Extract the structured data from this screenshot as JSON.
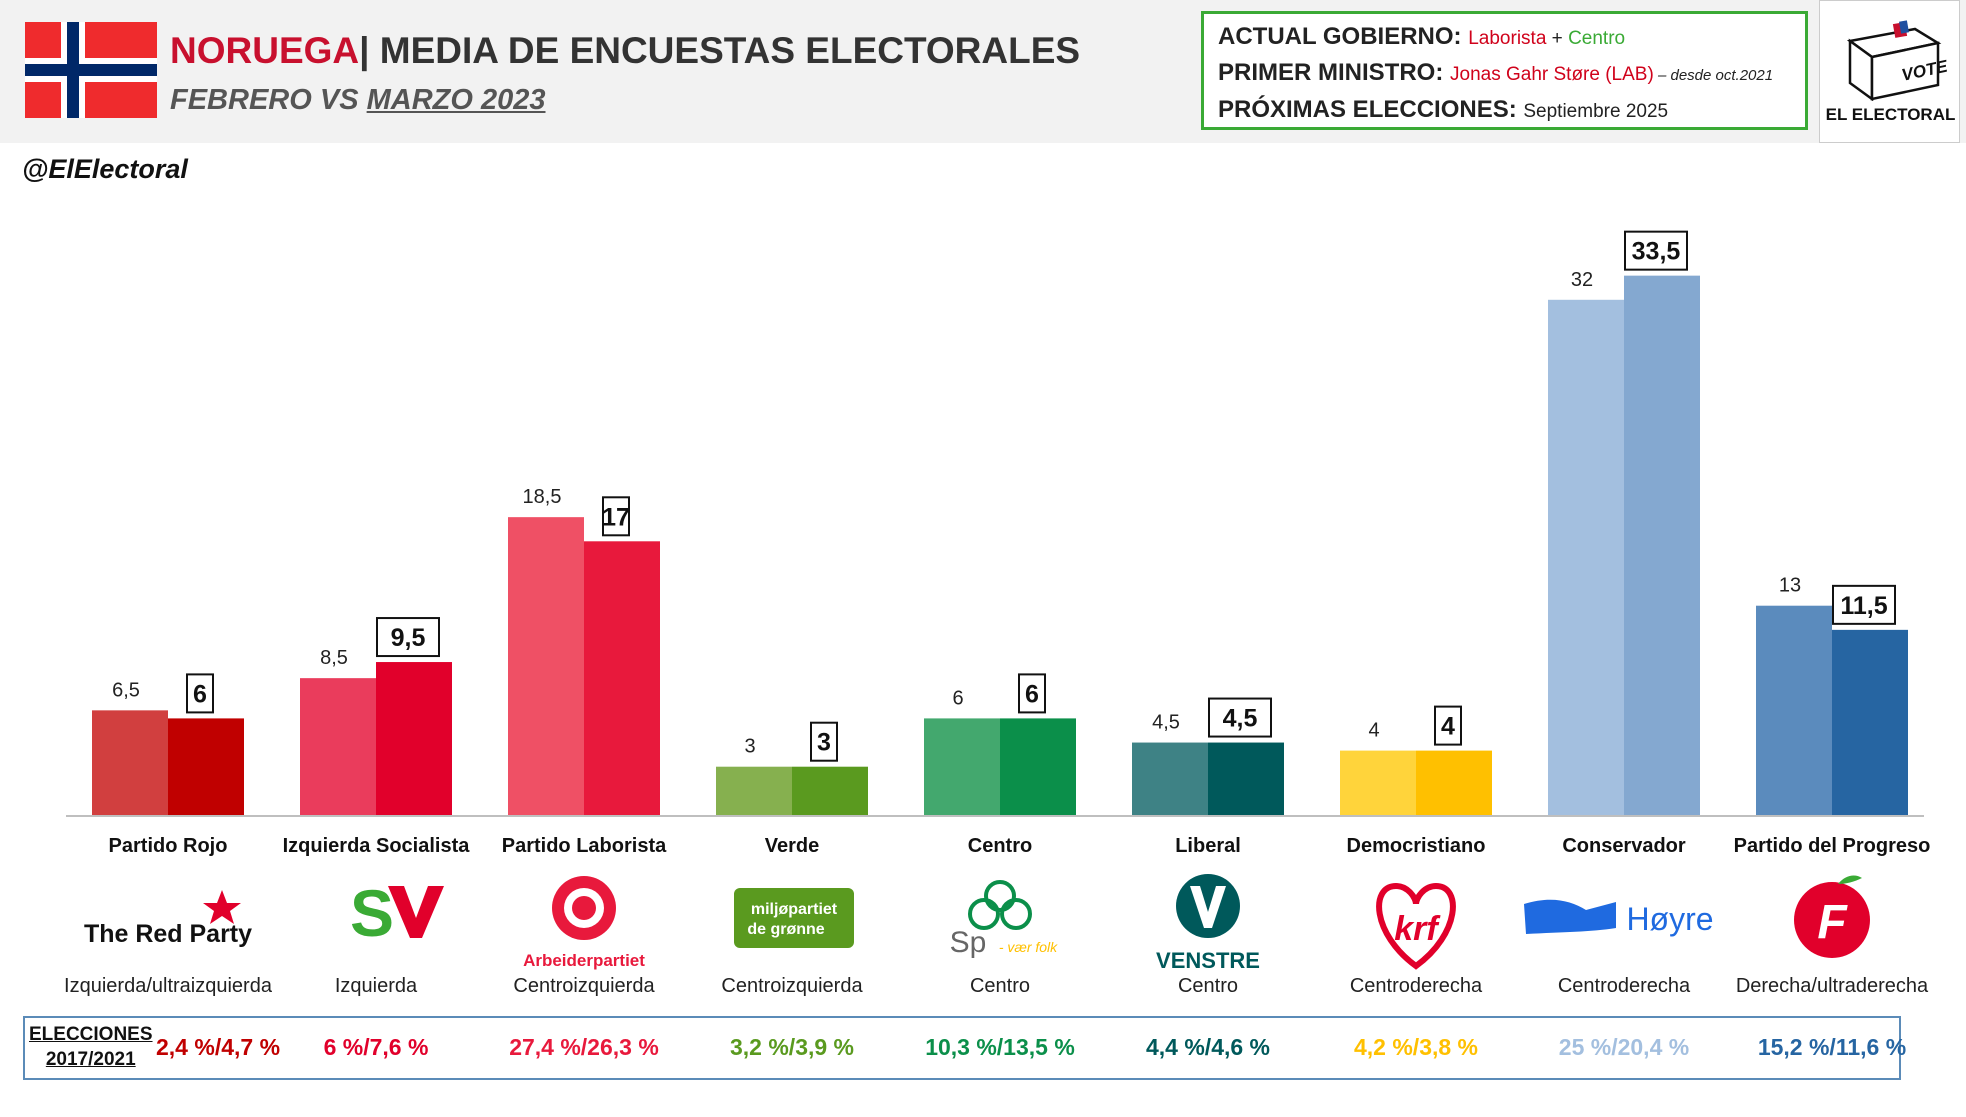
{
  "header": {
    "country": "NORUEGA",
    "title_rest": "| MEDIA DE ENCUESTAS ELECTORALES",
    "subtitle_part1": "FEBRERO",
    "subtitle_vs": " VS ",
    "subtitle_part2": "MARZO 2023",
    "handle": "@ElElectoral"
  },
  "government": {
    "gov_label": "ACTUAL GOBIERNO:",
    "gov_party1": "Laborista",
    "gov_plus": " + ",
    "gov_party2": "Centro",
    "pm_label": "PRIMER MINISTRO:",
    "pm_name": "Jonas Gahr Støre (LAB)",
    "pm_note": " – desde oct.2021",
    "next_label": "PRÓXIMAS ELECCIONES:",
    "next_value": "Septiembre 2025"
  },
  "logo": {
    "vote": "VOTE",
    "brand": "EL ELECTORAL"
  },
  "chart_data": {
    "type": "bar",
    "ylim": [
      0,
      36
    ],
    "categories": [
      "Partido Rojo",
      "Izquierda Socialista",
      "Partido Laborista",
      "Verde",
      "Centro",
      "Liberal",
      "Democristiano",
      "Conservador",
      "Partido del Progreso"
    ],
    "series": [
      {
        "values": [
          6.5,
          8.5,
          18.5,
          3,
          6,
          4.5,
          4,
          32,
          13
        ]
      },
      {
        "values": [
          6,
          9.5,
          17,
          3,
          6,
          4.5,
          4,
          33.5,
          11.5
        ]
      }
    ],
    "value_labels_prev": [
      "6,5",
      "8,5",
      "18,5",
      "3",
      "6",
      "4,5",
      "4",
      "32",
      "13"
    ],
    "value_labels_curr": [
      "6",
      "9,5",
      "17",
      "3",
      "6",
      "4,5",
      "4",
      "33,5",
      "11,5"
    ],
    "colors_prev": [
      "#d13f3f",
      "#ea3c5c",
      "#ef5065",
      "#86b04f",
      "#43a86e",
      "#3e8285",
      "#ffd43b",
      "#a3bfdf",
      "#5b8bbd"
    ],
    "colors_curr": [
      "#c00000",
      "#e1002b",
      "#e8193c",
      "#5a9a1f",
      "#0b8f4a",
      "#00595b",
      "#ffc000",
      "#84a8d0",
      "#2665a2"
    ]
  },
  "parties": [
    {
      "ideology": "Izquierda/ultraizquierda",
      "logo_text": "The Red Party",
      "election": "2,4 %/4,7 %",
      "color": "#c00000"
    },
    {
      "ideology": "Izquierda",
      "logo_text": "SV",
      "election": "6 %/7,6 %",
      "color": "#e1002b"
    },
    {
      "ideology": "Centroizquierda",
      "logo_text": "Arbeiderpartiet",
      "election": "27,4 %/26,3 %",
      "color": "#e8193c"
    },
    {
      "ideology": "Centroizquierda",
      "logo_text": "miljøpartiet de grønne",
      "election": "3,2 %/3,9 %",
      "color": "#5a9a1f"
    },
    {
      "ideology": "Centro",
      "logo_text": "Sp",
      "logo_sub": "- vær folk",
      "election": "10,3 %/13,5 %",
      "color": "#0b8f4a"
    },
    {
      "ideology": "Centro",
      "logo_text": "VENSTRE",
      "election": "4,4 %/4,6 %",
      "color": "#00595b"
    },
    {
      "ideology": "Centroderecha",
      "logo_text": "krf",
      "election": "4,2 %/3,8 %",
      "color": "#ffc000"
    },
    {
      "ideology": "Centroderecha",
      "logo_text": "Høyre",
      "election": "25 %/20,4 %",
      "color": "#a3bfdf"
    },
    {
      "ideology": "Derecha/ultraderecha",
      "logo_text": "F",
      "election": "15,2 %/11,6 %",
      "color": "#2665a2"
    }
  ],
  "elections": {
    "label_line1": "ELECCIONES",
    "label_line2": "2017/2021"
  }
}
